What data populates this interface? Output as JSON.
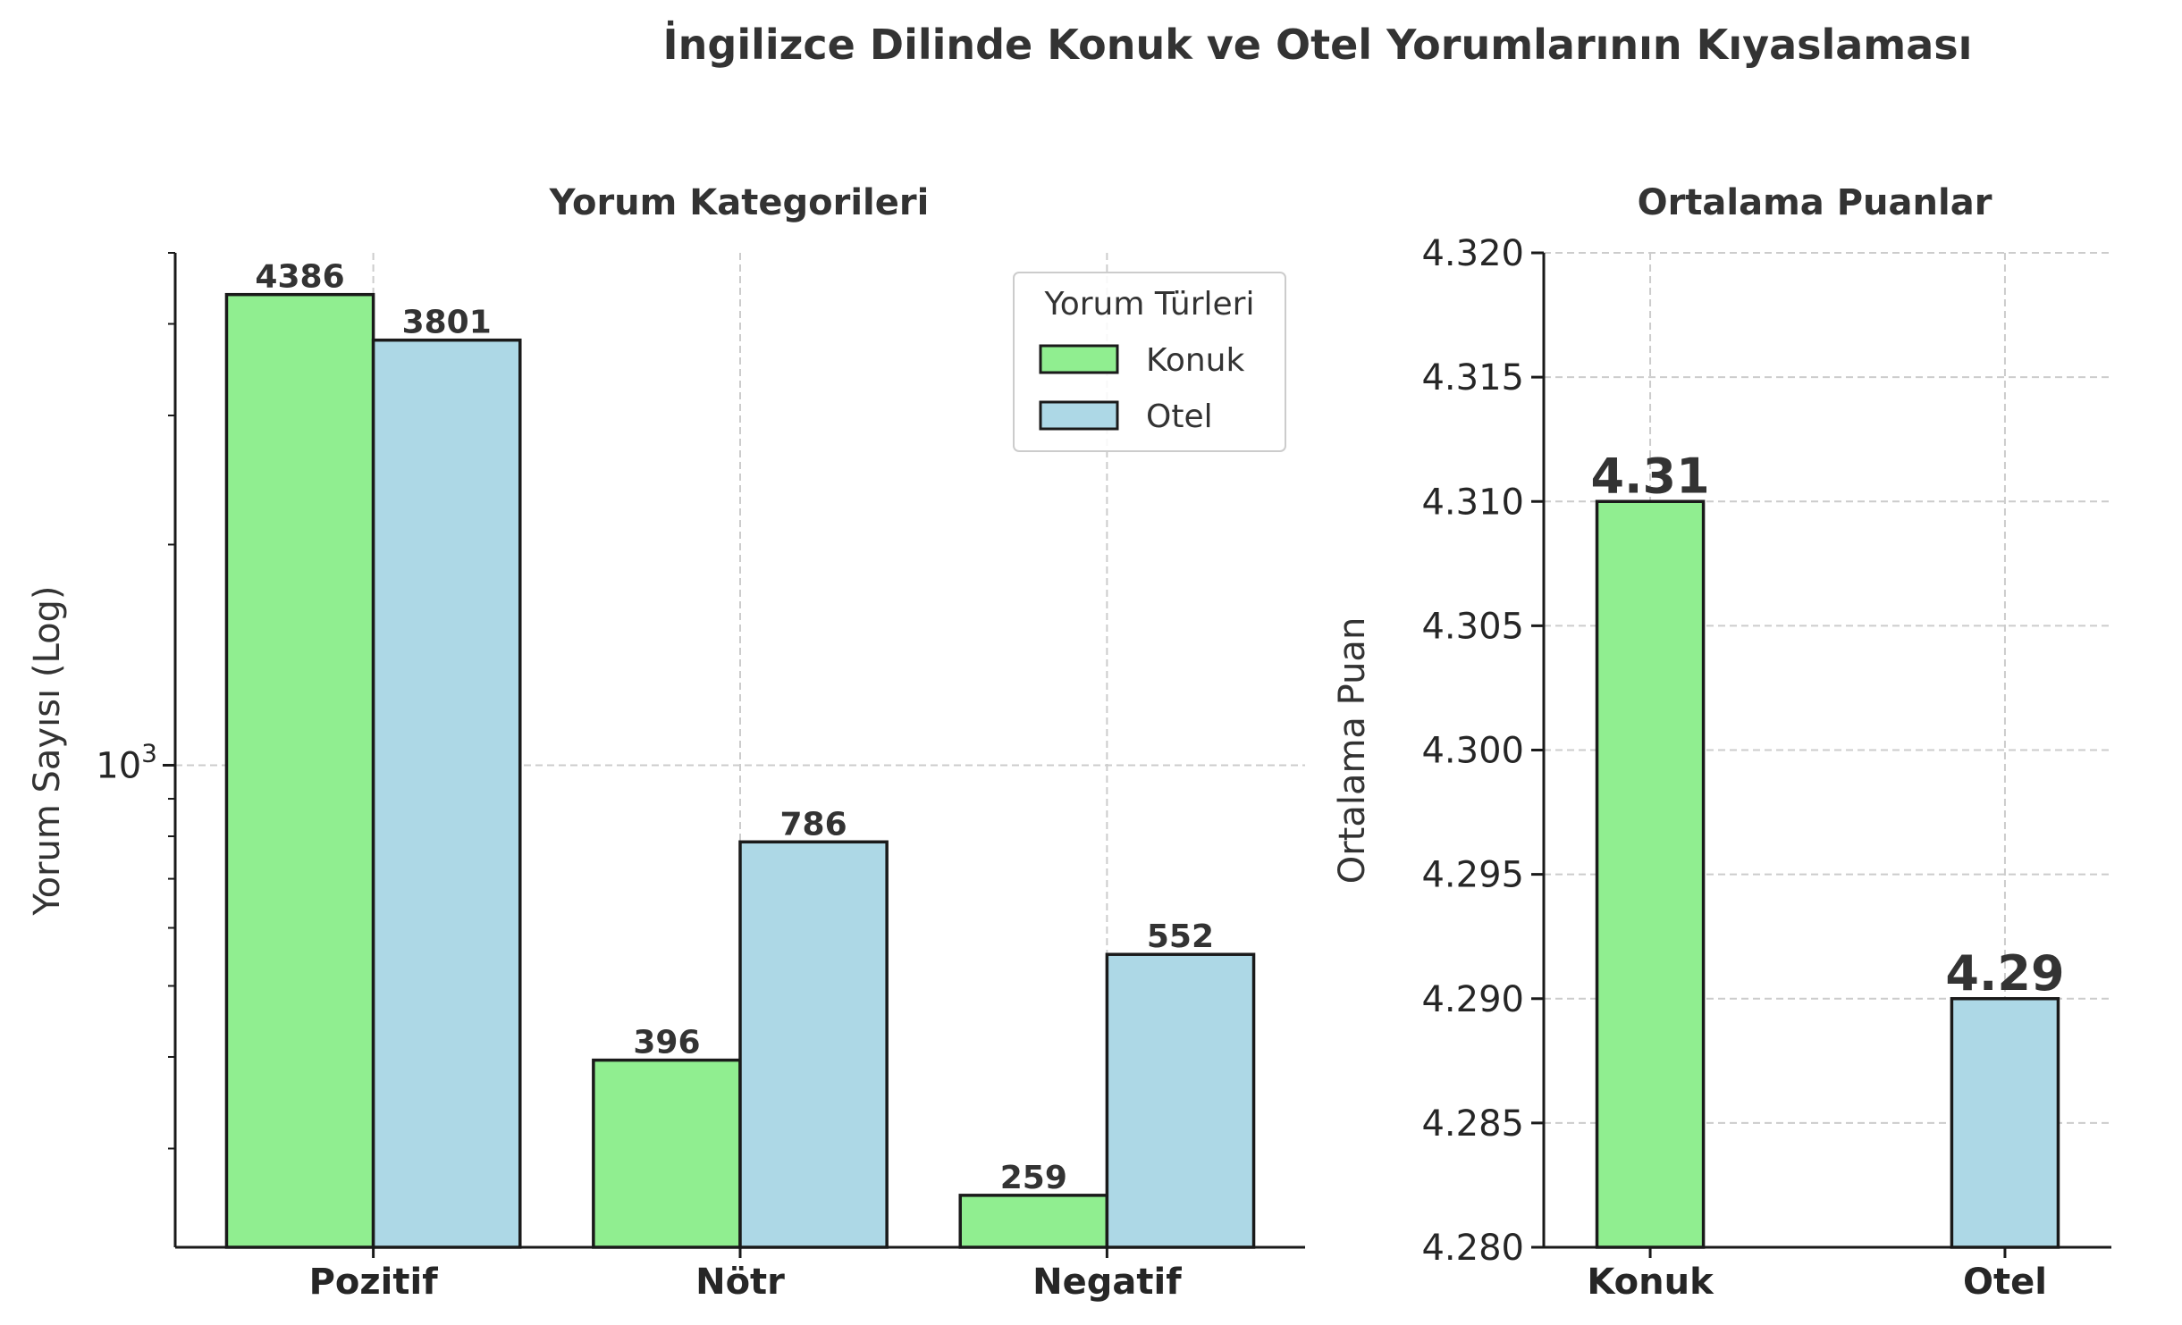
{
  "suptitle": "İngilizce Dilinde Konuk ve Otel Yorumlarının Kıyaslaması",
  "colors": {
    "Konuk": "#90ee90",
    "Otel": "#add8e6"
  },
  "legend_title": "Yorum Türleri",
  "chart_data": [
    {
      "type": "bar",
      "title": "Yorum Kategorileri",
      "xlabel": "",
      "ylabel": "Yorum Sayısı (Log)",
      "yscale": "log",
      "ylim": [
        220,
        5000
      ],
      "ytick_labels": [
        {
          "value": 1000,
          "base": "10",
          "exp": "3"
        }
      ],
      "categories": [
        "Pozitif",
        "Nötr",
        "Negatif"
      ],
      "series": [
        {
          "name": "Konuk",
          "values": [
            4386,
            396,
            259
          ]
        },
        {
          "name": "Otel",
          "values": [
            3801,
            786,
            552
          ]
        }
      ],
      "data_labels": [
        [
          "4386",
          "396",
          "259"
        ],
        [
          "3801",
          "786",
          "552"
        ]
      ],
      "grid": true,
      "legend": "upper right"
    },
    {
      "type": "bar",
      "title": "Ortalama Puanlar",
      "xlabel": "",
      "ylabel": "Ortalama Puan",
      "ylim": [
        4.28,
        4.32
      ],
      "yticks": [
        "4.280",
        "4.285",
        "4.290",
        "4.295",
        "4.300",
        "4.305",
        "4.310",
        "4.315",
        "4.320"
      ],
      "categories": [
        "Konuk",
        "Otel"
      ],
      "values": [
        4.31,
        4.29
      ],
      "data_labels": [
        "4.31",
        "4.29"
      ],
      "grid": true
    }
  ]
}
